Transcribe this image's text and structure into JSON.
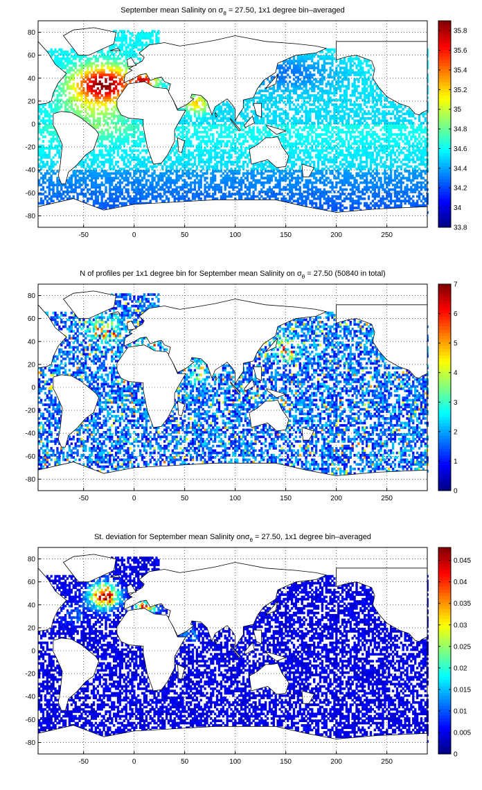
{
  "chart_data": [
    {
      "type": "heatmap",
      "title": "September mean Salinity on σθ = 27.50, 1x1 degree bin–averaged",
      "title_parts": {
        "pre": "September mean Salinity on σ",
        "sub": "θ",
        "post": " = 27.50, 1x1 degree bin–averaged"
      },
      "xlim": [
        -95,
        290
      ],
      "ylim": [
        -90,
        90
      ],
      "xticks": [
        -50,
        0,
        50,
        100,
        150,
        200,
        250
      ],
      "yticks": [
        80,
        60,
        40,
        20,
        0,
        -20,
        -40,
        -60,
        -80
      ],
      "grid": true,
      "colorbar": {
        "min": 33.8,
        "max": 35.9,
        "ticks": [
          35.8,
          35.6,
          35.4,
          35.2,
          35,
          34.8,
          34.6,
          34.4,
          34.2,
          34,
          33.8
        ]
      },
      "field": "salinity",
      "approx_values": {
        "north_atlantic_subtropics": 35.8,
        "mediterranean_outflow": 35.9,
        "arabian_sea": 35.3,
        "north_pacific": 34.45,
        "southern_ocean": 34.3
      }
    },
    {
      "type": "heatmap",
      "title": "N of profiles per 1x1 degree bin for September mean Salinity on σθ = 27.50 (50840 in total)",
      "title_parts": {
        "pre": "N of profiles per 1x1 degree bin for September mean Salinity on σ",
        "sub": "θ",
        "post": " = 27.50 (50840 in total)"
      },
      "total_profiles": 50840,
      "xlim": [
        -95,
        290
      ],
      "ylim": [
        -90,
        90
      ],
      "xticks": [
        -50,
        0,
        50,
        100,
        150,
        200,
        250
      ],
      "yticks": [
        80,
        60,
        40,
        20,
        0,
        -20,
        -40,
        -60,
        -80
      ],
      "grid": true,
      "colorbar": {
        "min": 0,
        "max": 7,
        "ticks": [
          7,
          6,
          5,
          4,
          3,
          2,
          1,
          0
        ]
      },
      "field": "count"
    },
    {
      "type": "heatmap",
      "title": "St. deviation for September mean Salinity onσθ = 27.50, 1x1 degree bin–averaged",
      "title_parts": {
        "pre": "St. deviation for September mean Salinity on",
        "sub": "θ",
        "post": " = 27.50, 1x1 degree bin–averaged",
        "sigma": "σ"
      },
      "xlim": [
        -95,
        290
      ],
      "ylim": [
        -90,
        90
      ],
      "xticks": [
        -50,
        0,
        50,
        100,
        150,
        200,
        250
      ],
      "yticks": [
        80,
        60,
        40,
        20,
        0,
        -20,
        -40,
        -60,
        -80
      ],
      "grid": true,
      "colorbar": {
        "min": 0,
        "max": 0.048,
        "ticks": [
          0.045,
          0.04,
          0.035,
          0.03,
          0.025,
          0.02,
          0.015,
          0.01,
          0.005,
          0
        ]
      },
      "field": "stdev"
    }
  ]
}
